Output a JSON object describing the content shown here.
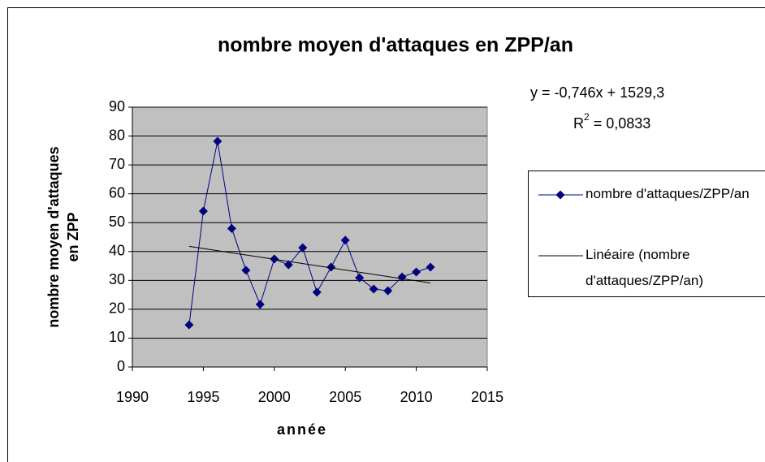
{
  "chart_data": {
    "type": "line",
    "title": "nombre moyen d'attaques en ZPP/an",
    "x_label": "année",
    "y_label": [
      "nombre moyen d'attaques",
      "en ZPP"
    ],
    "equation": "y = -0,746x + 1529,3",
    "r2": [
      "R",
      "2",
      " = 0,0833"
    ],
    "x": [
      1994,
      1995,
      1996,
      1997,
      1998,
      1999,
      2000,
      2001,
      2002,
      2003,
      2004,
      2005,
      2006,
      2007,
      2008,
      2009,
      2010,
      2011
    ],
    "series": [
      {
        "name": "nombre d'attaques/ZPP/an",
        "color": "#000080",
        "marker": "diamond",
        "values": [
          14.6,
          54,
          78.2,
          48,
          33.5,
          21.7,
          37.4,
          35.4,
          41.3,
          25.9,
          34.6,
          43.9,
          30.9,
          27,
          26.4,
          31.2,
          32.9,
          34.6
        ]
      },
      {
        "name": "Linéaire (nombre d'attaques/ZPP/an)",
        "color": "#000000",
        "marker": "none",
        "x": [
          1994,
          2011
        ],
        "values": [
          41.8,
          29.1
        ]
      }
    ],
    "xlim": [
      1990,
      2015
    ],
    "xticks": [
      1990,
      1995,
      2000,
      2005,
      2010,
      2015
    ],
    "ylim": [
      0,
      90
    ],
    "yticks": [
      0,
      10,
      20,
      30,
      40,
      50,
      60,
      70,
      80,
      90
    ],
    "grid": true,
    "plot_background": "#c0c0c0"
  }
}
